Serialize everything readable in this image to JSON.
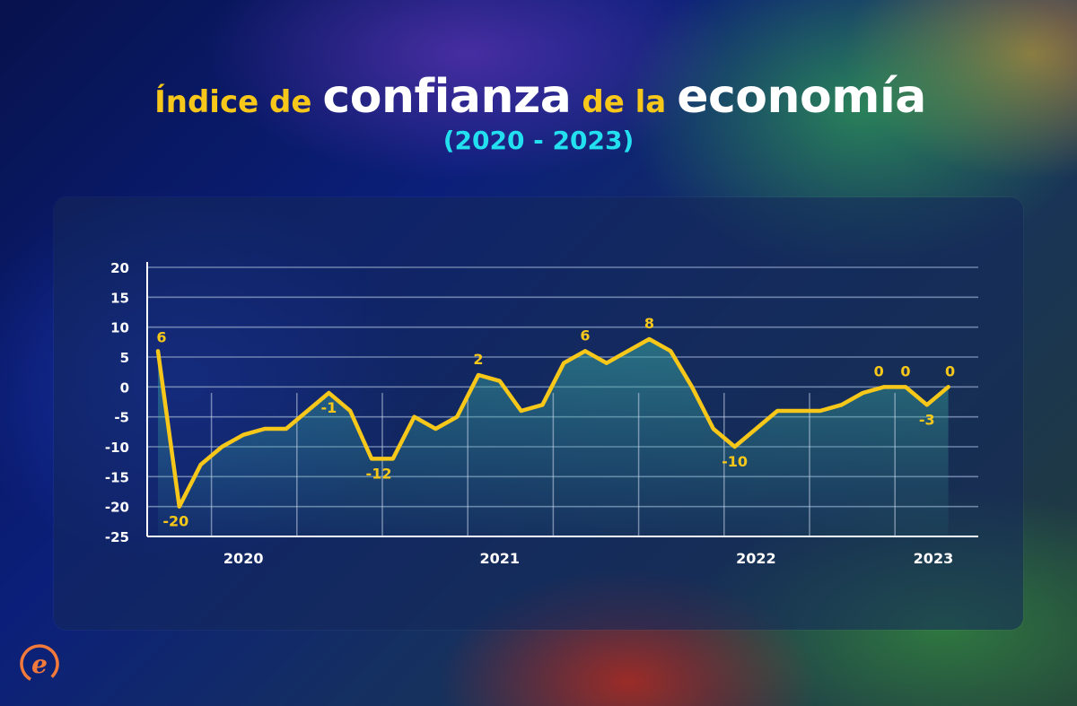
{
  "title": {
    "part1": "Índice de",
    "part2": "confianza",
    "part3": "de la",
    "part4": "economía"
  },
  "subtitle": "(2020 - 2023)",
  "colors": {
    "line": "#f7c81a",
    "title_accent": "#f7c81a",
    "subtitle": "#22e0f0",
    "grid": "#8ea2c4",
    "axis_text": "#ffffff"
  },
  "logo": {
    "icon": "e-logo-icon"
  },
  "chart_data": {
    "type": "area",
    "title": "",
    "xlabel": "",
    "ylabel": "",
    "ylim": [
      -25,
      20
    ],
    "y_ticks": [
      20,
      15,
      10,
      5,
      0,
      -5,
      -10,
      -15,
      -20,
      -25
    ],
    "year_labels": [
      "2020",
      "2021",
      "2022",
      "2023"
    ],
    "grid": true,
    "series": [
      {
        "values": [
          6,
          -20,
          -13,
          -10,
          -8,
          -7,
          -7,
          -4,
          -1,
          -4,
          -12,
          -12,
          -5,
          -7,
          -5,
          2,
          1,
          -4,
          -3,
          4,
          6,
          4,
          6,
          8,
          6,
          0,
          -7,
          -10,
          -7,
          -4,
          -4,
          -4,
          -3,
          -1,
          0,
          0,
          -3,
          0
        ]
      }
    ],
    "data_labels": [
      {
        "index": 0,
        "text": "6"
      },
      {
        "index": 1,
        "text": "-20"
      },
      {
        "index": 8,
        "text": "-1"
      },
      {
        "index": 10,
        "text": "-12"
      },
      {
        "index": 15,
        "text": "2"
      },
      {
        "index": 20,
        "text": "6"
      },
      {
        "index": 23,
        "text": "8"
      },
      {
        "index": 27,
        "text": "-10"
      },
      {
        "index": 34,
        "text": "0"
      },
      {
        "index": 35,
        "text": "0"
      },
      {
        "index": 36,
        "text": "-3"
      },
      {
        "index": 37,
        "text": "0"
      }
    ]
  }
}
